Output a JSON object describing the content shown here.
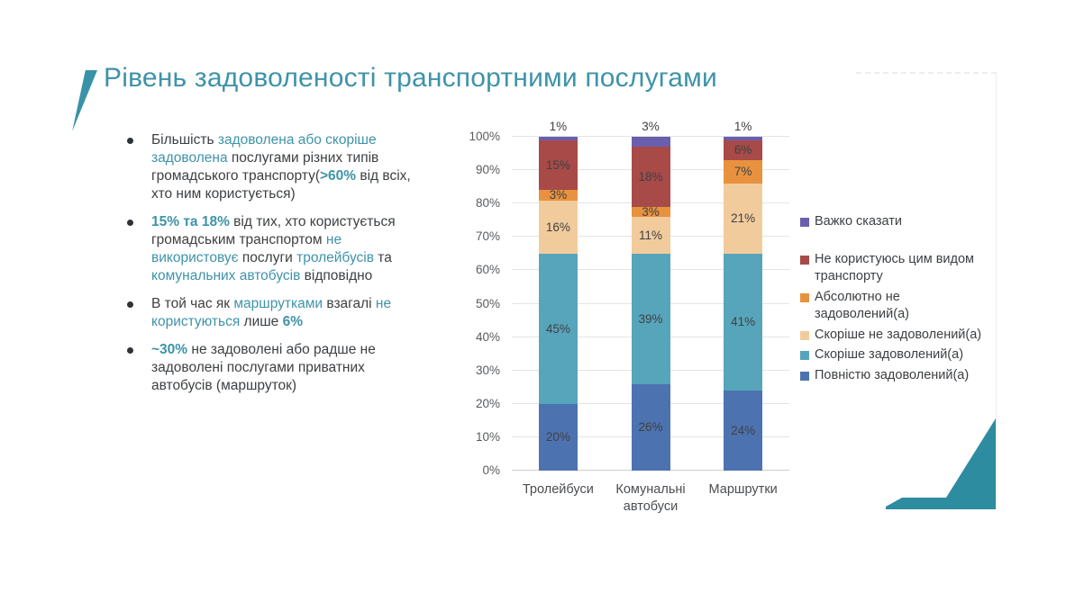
{
  "slide": {
    "title": "Рівень задоволеності транспортними послугами",
    "accent_color": "#3e93a8",
    "decor_color": "#2e8ca0",
    "text_color": "#3d4043"
  },
  "bullets": [
    {
      "segments": [
        {
          "t": "Більшість ",
          "s": "n"
        },
        {
          "t": "задоволена або скоріше задоволена",
          "s": "a"
        },
        {
          "t": " послугами різних типів громадського транспорту(",
          "s": "n"
        },
        {
          "t": ">60%",
          "s": "b"
        },
        {
          "t": " від всіх, хто ним користується)",
          "s": "n"
        }
      ]
    },
    {
      "segments": [
        {
          "t": "15% та 18%",
          "s": "b"
        },
        {
          "t": " від тих, хто користується громадським транспортом ",
          "s": "n"
        },
        {
          "t": "не використовує",
          "s": "a"
        },
        {
          "t": " послуги ",
          "s": "n"
        },
        {
          "t": "тролейбусів",
          "s": "a"
        },
        {
          "t": " та ",
          "s": "n"
        },
        {
          "t": "комунальних автобусів",
          "s": "a"
        },
        {
          "t": " відповідно",
          "s": "n"
        }
      ]
    },
    {
      "segments": [
        {
          "t": "В той час як ",
          "s": "n"
        },
        {
          "t": "маршрутками",
          "s": "a"
        },
        {
          "t": " взагалі ",
          "s": "n"
        },
        {
          "t": "не користуються",
          "s": "a"
        },
        {
          "t": " лише ",
          "s": "n"
        },
        {
          "t": "6%",
          "s": "b"
        }
      ]
    },
    {
      "segments": [
        {
          "t": "~30%",
          "s": "b"
        },
        {
          "t": " не задоволені або радше не задоволені послугами приватних автобусів (маршруток)",
          "s": "n"
        }
      ]
    }
  ],
  "chart_data": {
    "type": "bar",
    "stacked": true,
    "categories": [
      "Тролейбуси",
      "Комунальні автобуси",
      "Маршрутки"
    ],
    "series": [
      {
        "name": "Повністю задоволений(а)",
        "color": "#4d72b0",
        "values": [
          20,
          26,
          24
        ]
      },
      {
        "name": "Скоріше задоволений(а)",
        "color": "#57a5bb",
        "values": [
          45,
          39,
          41
        ]
      },
      {
        "name": "Скоріше не задоволений(а)",
        "color": "#f2cb9c",
        "values": [
          16,
          11,
          21
        ]
      },
      {
        "name": "Абсолютно не задоволений(а)",
        "color": "#e8923f",
        "values": [
          3,
          3,
          7
        ]
      },
      {
        "name": "Не користуюсь цим видом транспорту",
        "color": "#a84a47",
        "values": [
          15,
          18,
          6
        ]
      },
      {
        "name": "Важко сказати",
        "color": "#6a5fae",
        "values": [
          1,
          3,
          1
        ]
      }
    ],
    "title": "",
    "xlabel": "",
    "ylabel": "",
    "ylim": [
      0,
      100
    ],
    "ytick_step": 10,
    "ytick_suffix": "%",
    "value_suffix": "%",
    "grid": true,
    "legend_position": "right",
    "legend_order_reversed": true,
    "outside_label_series": "Важко сказати"
  }
}
